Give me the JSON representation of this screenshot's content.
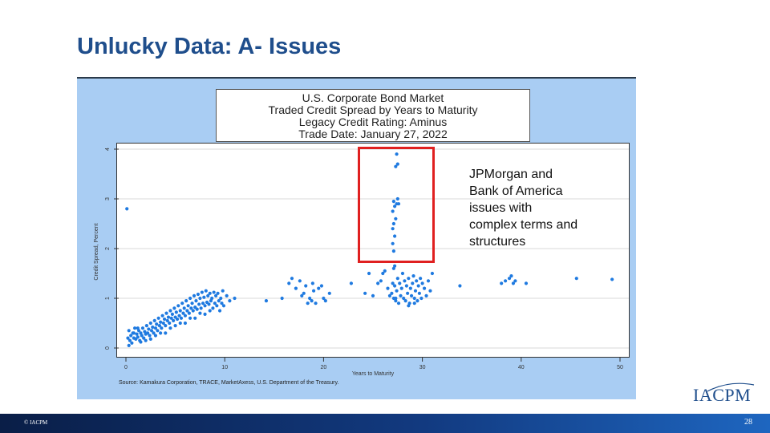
{
  "slide": {
    "title": "Unlucky Data: A- Issues",
    "footer_left": "© IACPM",
    "page_number": "28",
    "logo_text": "IACPM"
  },
  "annotation": {
    "lines": [
      "JPMorgan and",
      "Bank of America",
      "issues with",
      "complex terms and",
      "structures"
    ]
  },
  "colors": {
    "title": "#1f4e8c",
    "panel": "#a9cdf3",
    "dots": "#1f7ae0",
    "highlight": "#e02020"
  },
  "chart_data": {
    "type": "scatter",
    "title_lines": [
      "U.S. Corporate Bond Market",
      "Traded Credit Spread by Years to Maturity",
      "Legacy Credit Rating: Aminus",
      "Trade Date: January 27, 2022"
    ],
    "xlabel": "Years to Maturity",
    "ylabel": "Credit Spread, Percent",
    "xlim": [
      0,
      50
    ],
    "ylim": [
      0,
      4
    ],
    "xticks": [
      0,
      10,
      20,
      30,
      40,
      50
    ],
    "yticks": [
      0,
      1,
      2,
      3,
      4
    ],
    "grid": true,
    "source": "Source: Kamakura Corporation, TRACE, MarketAxess, U.S. Department of the Treasury.",
    "points": [
      [
        0.1,
        2.8
      ],
      [
        0.2,
        0.2
      ],
      [
        0.3,
        0.35
      ],
      [
        0.4,
        0.15
      ],
      [
        0.5,
        0.25
      ],
      [
        0.6,
        0.1
      ],
      [
        0.7,
        0.3
      ],
      [
        0.8,
        0.2
      ],
      [
        0.9,
        0.4
      ],
      [
        1.0,
        0.18
      ],
      [
        1.1,
        0.28
      ],
      [
        1.2,
        0.22
      ],
      [
        1.3,
        0.35
      ],
      [
        1.4,
        0.15
      ],
      [
        1.5,
        0.3
      ],
      [
        1.6,
        0.25
      ],
      [
        1.7,
        0.4
      ],
      [
        1.8,
        0.2
      ],
      [
        1.9,
        0.33
      ],
      [
        2.0,
        0.28
      ],
      [
        2.1,
        0.45
      ],
      [
        2.2,
        0.3
      ],
      [
        2.3,
        0.38
      ],
      [
        2.4,
        0.25
      ],
      [
        2.5,
        0.5
      ],
      [
        2.6,
        0.35
      ],
      [
        2.7,
        0.42
      ],
      [
        2.8,
        0.3
      ],
      [
        2.9,
        0.55
      ],
      [
        3.0,
        0.4
      ],
      [
        3.1,
        0.48
      ],
      [
        3.2,
        0.35
      ],
      [
        3.3,
        0.6
      ],
      [
        3.4,
        0.45
      ],
      [
        3.5,
        0.52
      ],
      [
        3.6,
        0.4
      ],
      [
        3.7,
        0.65
      ],
      [
        3.8,
        0.5
      ],
      [
        3.9,
        0.58
      ],
      [
        4.0,
        0.45
      ],
      [
        4.1,
        0.7
      ],
      [
        4.2,
        0.55
      ],
      [
        4.3,
        0.62
      ],
      [
        4.4,
        0.5
      ],
      [
        4.5,
        0.75
      ],
      [
        4.6,
        0.6
      ],
      [
        4.7,
        0.68
      ],
      [
        4.8,
        0.55
      ],
      [
        4.9,
        0.8
      ],
      [
        5.0,
        0.62
      ],
      [
        5.1,
        0.72
      ],
      [
        5.2,
        0.58
      ],
      [
        5.3,
        0.85
      ],
      [
        5.4,
        0.65
      ],
      [
        5.5,
        0.75
      ],
      [
        5.6,
        0.6
      ],
      [
        5.7,
        0.9
      ],
      [
        5.8,
        0.7
      ],
      [
        5.9,
        0.8
      ],
      [
        6.0,
        0.65
      ],
      [
        6.1,
        0.95
      ],
      [
        6.2,
        0.75
      ],
      [
        6.3,
        0.85
      ],
      [
        6.4,
        0.7
      ],
      [
        6.5,
        1.0
      ],
      [
        6.6,
        0.8
      ],
      [
        6.7,
        0.9
      ],
      [
        6.8,
        0.75
      ],
      [
        6.9,
        1.05
      ],
      [
        7.0,
        0.82
      ],
      [
        7.1,
        0.95
      ],
      [
        7.2,
        0.78
      ],
      [
        7.3,
        1.08
      ],
      [
        7.4,
        0.88
      ],
      [
        7.5,
        1.0
      ],
      [
        7.6,
        0.8
      ],
      [
        7.7,
        1.12
      ],
      [
        7.8,
        0.9
      ],
      [
        7.9,
        1.02
      ],
      [
        8.0,
        0.85
      ],
      [
        8.1,
        1.15
      ],
      [
        8.2,
        0.92
      ],
      [
        8.3,
        1.05
      ],
      [
        8.4,
        0.88
      ],
      [
        8.5,
        1.1
      ],
      [
        8.6,
        0.95
      ],
      [
        8.7,
        1.0
      ],
      [
        8.8,
        0.8
      ],
      [
        8.9,
        1.12
      ],
      [
        9.0,
        0.9
      ],
      [
        9.1,
        1.05
      ],
      [
        9.2,
        0.85
      ],
      [
        9.3,
        1.1
      ],
      [
        9.4,
        0.95
      ],
      [
        9.5,
        0.75
      ],
      [
        9.6,
        1.0
      ],
      [
        9.7,
        0.9
      ],
      [
        9.8,
        1.15
      ],
      [
        9.9,
        0.85
      ],
      [
        10.2,
        1.05
      ],
      [
        10.5,
        0.95
      ],
      [
        11.0,
        1.0
      ],
      [
        1.5,
        0.12
      ],
      [
        2.5,
        0.18
      ],
      [
        3.5,
        0.3
      ],
      [
        4.5,
        0.4
      ],
      [
        5.5,
        0.5
      ],
      [
        6.5,
        0.6
      ],
      [
        7.5,
        0.7
      ],
      [
        8.5,
        0.75
      ],
      [
        0.3,
        0.05
      ],
      [
        0.8,
        0.3
      ],
      [
        1.2,
        0.4
      ],
      [
        2.0,
        0.15
      ],
      [
        3.0,
        0.25
      ],
      [
        4.0,
        0.3
      ],
      [
        5.0,
        0.45
      ],
      [
        6.0,
        0.5
      ],
      [
        7.0,
        0.6
      ],
      [
        8.0,
        0.68
      ],
      [
        14.2,
        0.95
      ],
      [
        15.8,
        1.0
      ],
      [
        16.5,
        1.3
      ],
      [
        16.8,
        1.4
      ],
      [
        17.2,
        1.2
      ],
      [
        17.6,
        1.35
      ],
      [
        18.0,
        1.1
      ],
      [
        18.2,
        1.25
      ],
      [
        18.4,
        0.9
      ],
      [
        18.6,
        1.0
      ],
      [
        18.9,
        1.3
      ],
      [
        19.2,
        0.9
      ],
      [
        19.5,
        1.2
      ],
      [
        19.8,
        1.25
      ],
      [
        20.0,
        1.0
      ],
      [
        20.2,
        0.95
      ],
      [
        20.6,
        1.1
      ],
      [
        17.8,
        1.05
      ],
      [
        19.0,
        1.15
      ],
      [
        18.8,
        0.95
      ],
      [
        22.8,
        1.3
      ],
      [
        24.2,
        1.1
      ],
      [
        24.6,
        1.5
      ],
      [
        25.0,
        1.05
      ],
      [
        25.5,
        1.3
      ],
      [
        25.8,
        1.35
      ],
      [
        26.0,
        1.5
      ],
      [
        26.2,
        1.55
      ],
      [
        26.5,
        1.2
      ],
      [
        26.7,
        1.05
      ],
      [
        27.0,
        1.3
      ],
      [
        27.1,
        1.0
      ],
      [
        27.2,
        1.25
      ],
      [
        27.3,
        0.95
      ],
      [
        27.4,
        1.15
      ],
      [
        27.5,
        1.4
      ],
      [
        27.6,
        0.9
      ],
      [
        27.7,
        1.3
      ],
      [
        27.8,
        1.05
      ],
      [
        27.9,
        1.2
      ],
      [
        28.0,
        1.5
      ],
      [
        28.1,
        1.0
      ],
      [
        28.2,
        1.35
      ],
      [
        28.3,
        0.95
      ],
      [
        28.4,
        1.25
      ],
      [
        28.5,
        1.1
      ],
      [
        28.6,
        1.4
      ],
      [
        28.7,
        0.9
      ],
      [
        28.8,
        1.2
      ],
      [
        28.9,
        1.05
      ],
      [
        29.0,
        1.3
      ],
      [
        29.1,
        1.45
      ],
      [
        29.2,
        1.0
      ],
      [
        29.3,
        1.15
      ],
      [
        29.4,
        1.35
      ],
      [
        29.5,
        0.95
      ],
      [
        29.6,
        1.25
      ],
      [
        29.7,
        1.1
      ],
      [
        29.8,
        1.4
      ],
      [
        29.9,
        1.0
      ],
      [
        30.0,
        1.3
      ],
      [
        30.2,
        1.2
      ],
      [
        30.4,
        1.05
      ],
      [
        30.6,
        1.35
      ],
      [
        30.8,
        1.15
      ],
      [
        31.0,
        1.5
      ],
      [
        27.3,
        1.0
      ],
      [
        28.6,
        0.85
      ],
      [
        29.2,
        0.9
      ],
      [
        26.9,
        1.1
      ],
      [
        27.1,
        1.6
      ],
      [
        27.2,
        1.65
      ],
      [
        27.1,
        1.95
      ],
      [
        27.0,
        2.1
      ],
      [
        27.2,
        2.25
      ],
      [
        27.0,
        2.4
      ],
      [
        27.1,
        2.5
      ],
      [
        27.3,
        2.6
      ],
      [
        27.0,
        2.75
      ],
      [
        27.2,
        2.85
      ],
      [
        27.4,
        2.9
      ],
      [
        27.1,
        2.95
      ],
      [
        27.5,
        3.0
      ],
      [
        27.6,
        2.9
      ],
      [
        27.3,
        3.65
      ],
      [
        27.5,
        3.7
      ],
      [
        27.4,
        3.9
      ],
      [
        33.8,
        1.25
      ],
      [
        38.0,
        1.3
      ],
      [
        38.4,
        1.35
      ],
      [
        38.8,
        1.4
      ],
      [
        39.0,
        1.45
      ],
      [
        39.2,
        1.3
      ],
      [
        39.4,
        1.35
      ],
      [
        40.5,
        1.3
      ],
      [
        45.6,
        1.4
      ],
      [
        49.2,
        1.38
      ]
    ]
  }
}
